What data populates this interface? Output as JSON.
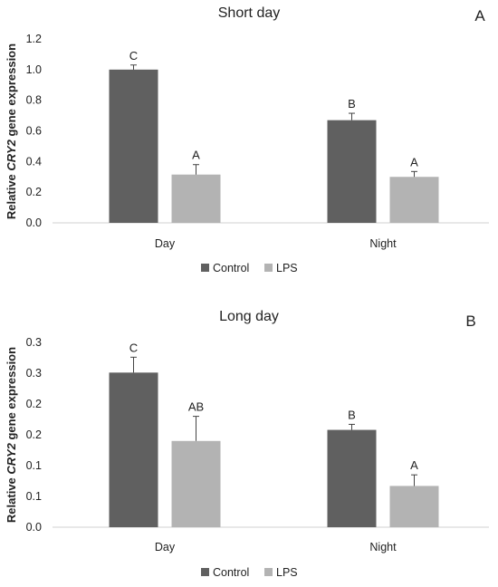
{
  "chart_data": [
    {
      "type": "bar",
      "title": "Short day",
      "panel_label": "A",
      "ylabel_parts": [
        "Relative ",
        "CRY2",
        " gene expression"
      ],
      "categories": [
        "Day",
        "Night"
      ],
      "ylim": [
        0,
        1.2
      ],
      "yticks": [
        0,
        0.2,
        0.4,
        0.6,
        0.8,
        1.0,
        1.2
      ],
      "ytick_labels": [
        "0.0",
        "0.2",
        "0.4",
        "0.6",
        "0.8",
        "1.0",
        "1.2"
      ],
      "series": [
        {
          "name": "Control",
          "color": "#606060",
          "values": [
            1.0,
            0.67
          ],
          "errors": [
            0.03,
            0.045
          ],
          "letters": [
            "C",
            "B"
          ]
        },
        {
          "name": "LPS",
          "color": "#b3b3b3",
          "values": [
            0.315,
            0.3
          ],
          "errors": [
            0.065,
            0.035
          ],
          "letters": [
            "A",
            "A"
          ]
        }
      ],
      "legend": "bottom-center"
    },
    {
      "type": "bar",
      "title": "Long day",
      "panel_label": "B",
      "ylabel_parts": [
        "Relative ",
        "CRY2",
        " gene expression"
      ],
      "categories": [
        "Day",
        "Night"
      ],
      "ylim": [
        0,
        0.3
      ],
      "yticks": [
        0,
        0.05,
        0.1,
        0.15,
        0.2,
        0.25,
        0.3
      ],
      "ytick_labels": [
        "0.0",
        "0.1",
        "0.1",
        "0.2",
        "0.2",
        "0.3",
        "0.3"
      ],
      "series": [
        {
          "name": "Control",
          "color": "#606060",
          "values": [
            0.251,
            0.158
          ],
          "errors": [
            0.025,
            0.009
          ],
          "letters": [
            "C",
            "B"
          ]
        },
        {
          "name": "LPS",
          "color": "#b3b3b3",
          "values": [
            0.14,
            0.067
          ],
          "errors": [
            0.04,
            0.018
          ],
          "letters": [
            "AB",
            "A"
          ]
        }
      ],
      "legend": "bottom-center"
    }
  ]
}
